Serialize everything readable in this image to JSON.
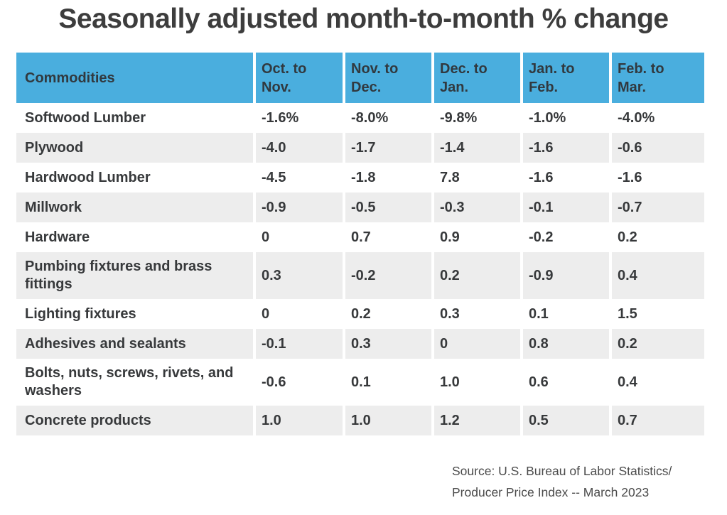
{
  "title": "Seasonally adjusted month-to-month % change",
  "table": {
    "header": {
      "commodities_label": "Commodities",
      "columns": [
        "Oct. to\nNov.",
        "Nov. to\nDec.",
        "Dec. to\nJan.",
        "Jan. to\nFeb.",
        "Feb. to\nMar."
      ]
    },
    "rows": [
      {
        "commodity": "Softwood Lumber",
        "values": [
          "-1.6%",
          "-8.0%",
          "-9.8%",
          "-1.0%",
          "-4.0%"
        ]
      },
      {
        "commodity": "Plywood",
        "values": [
          "-4.0",
          "-1.7",
          "-1.4",
          "-1.6",
          "-0.6"
        ]
      },
      {
        "commodity": "Hardwood Lumber",
        "values": [
          "-4.5",
          "-1.8",
          "7.8",
          "-1.6",
          "-1.6"
        ]
      },
      {
        "commodity": "Millwork",
        "values": [
          "-0.9",
          "-0.5",
          "-0.3",
          "-0.1",
          "-0.7"
        ]
      },
      {
        "commodity": "Hardware",
        "values": [
          "0",
          "0.7",
          "0.9",
          "-0.2",
          "0.2"
        ]
      },
      {
        "commodity": "Pumbing fixtures and brass fittings",
        "values": [
          "0.3",
          "-0.2",
          "0.2",
          "-0.9",
          "0.4"
        ]
      },
      {
        "commodity": "Lighting fixtures",
        "values": [
          "0",
          "0.2",
          "0.3",
          "0.1",
          "1.5"
        ]
      },
      {
        "commodity": "Adhesives and sealants",
        "values": [
          "-0.1",
          "0.3",
          "0",
          "0.8",
          "0.2"
        ]
      },
      {
        "commodity": "Bolts, nuts, screws, rivets, and washers",
        "values": [
          "-0.6",
          "0.1",
          "1.0",
          "0.6",
          "0.4"
        ]
      },
      {
        "commodity": "Concrete products",
        "values": [
          "1.0",
          "1.0",
          "1.2",
          "0.5",
          "0.7"
        ]
      }
    ]
  },
  "source": {
    "line1": "Source: U.S. Bureau of Labor Statistics/",
    "line2": "Producer Price Index -- March 2023"
  },
  "colors": {
    "header_bg": "#4aaede",
    "row_alt_bg": "#ededed",
    "text": "#37393b",
    "title_text": "#3d3d3d",
    "source_text": "#4b4b4b"
  },
  "chart_data": {
    "type": "table",
    "title": "Seasonally adjusted month-to-month % change",
    "units": "seasonally adjusted month-to-month percent change",
    "columns": [
      "Commodities",
      "Oct. to Nov.",
      "Nov. to Dec.",
      "Dec. to Jan.",
      "Jan. to Feb.",
      "Feb. to Mar."
    ],
    "rows": [
      {
        "commodity": "Softwood Lumber",
        "values": [
          -1.6,
          -8.0,
          -9.8,
          -1.0,
          -4.0
        ]
      },
      {
        "commodity": "Plywood",
        "values": [
          -4.0,
          -1.7,
          -1.4,
          -1.6,
          -0.6
        ]
      },
      {
        "commodity": "Hardwood Lumber",
        "values": [
          -4.5,
          -1.8,
          7.8,
          -1.6,
          -1.6
        ]
      },
      {
        "commodity": "Millwork",
        "values": [
          -0.9,
          -0.5,
          -0.3,
          -0.1,
          -0.7
        ]
      },
      {
        "commodity": "Hardware",
        "values": [
          0,
          0.7,
          0.9,
          -0.2,
          0.2
        ]
      },
      {
        "commodity": "Pumbing fixtures and brass fittings",
        "values": [
          0.3,
          -0.2,
          0.2,
          -0.9,
          0.4
        ]
      },
      {
        "commodity": "Lighting fixtures",
        "values": [
          0,
          0.2,
          0.3,
          0.1,
          1.5
        ]
      },
      {
        "commodity": "Adhesives and sealants",
        "values": [
          -0.1,
          0.3,
          0,
          0.8,
          0.2
        ]
      },
      {
        "commodity": "Bolts, nuts, screws, rivets, and washers",
        "values": [
          -0.6,
          0.1,
          1.0,
          0.6,
          0.4
        ]
      },
      {
        "commodity": "Concrete products",
        "values": [
          1.0,
          1.0,
          1.2,
          0.5,
          0.7
        ]
      }
    ],
    "source": "Source: U.S. Bureau of Labor Statistics/Producer Price Index -- March 2023"
  }
}
